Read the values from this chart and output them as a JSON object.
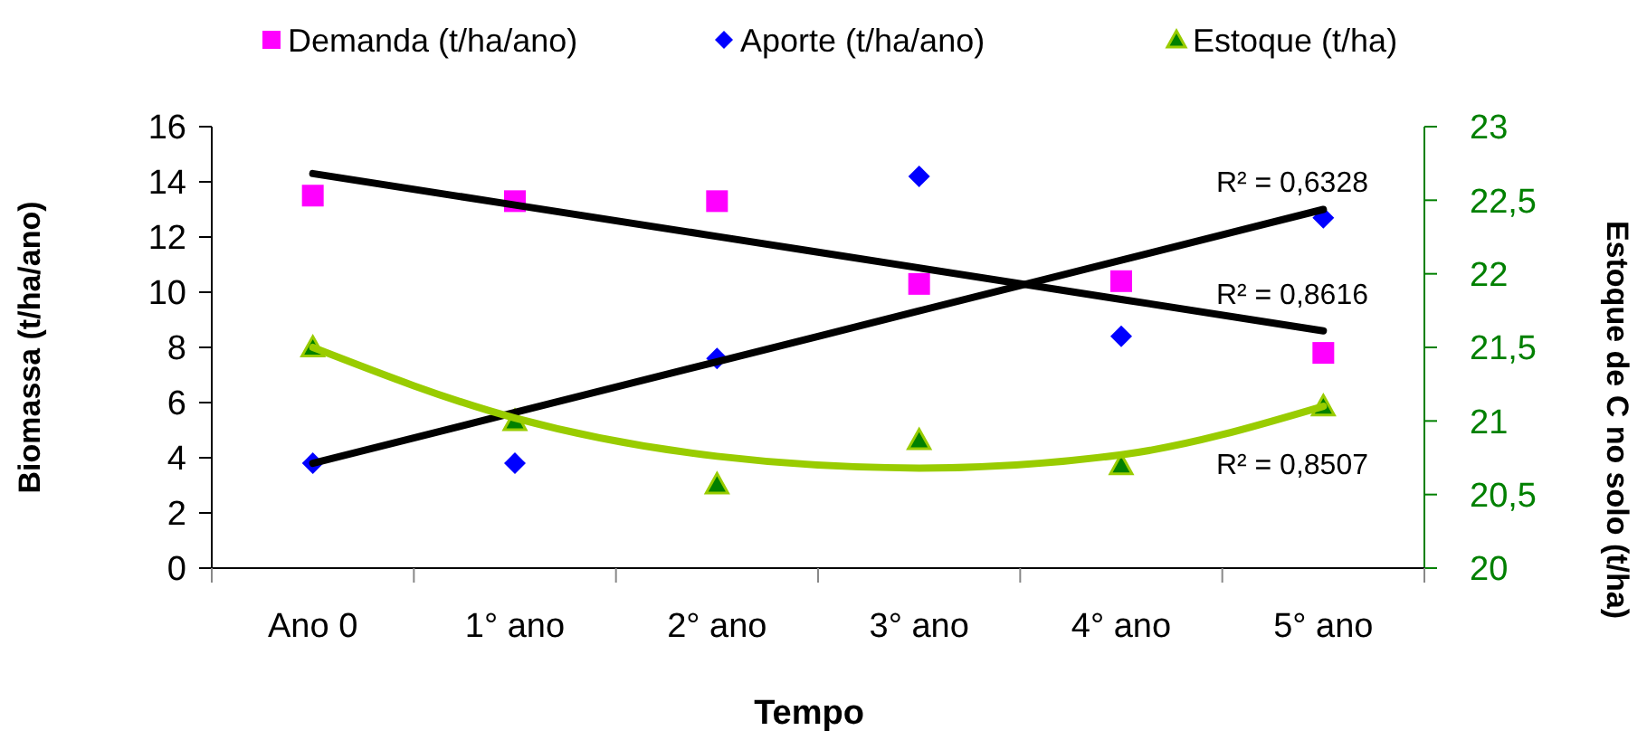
{
  "chart_data": {
    "type": "scatter",
    "xlabel": "Tempo",
    "ylabel": "Biomassa (t/ha/ano)",
    "y2label": "Estoque de C no solo (t/ha)",
    "categories": [
      "Ano 0",
      "1° ano",
      "2° ano",
      "3° ano",
      "4° ano",
      "5° ano"
    ],
    "ylim": [
      0,
      16
    ],
    "yticks": [
      0,
      2,
      4,
      6,
      8,
      10,
      12,
      14,
      16
    ],
    "y2lim": [
      20,
      23
    ],
    "y2ticks": [
      {
        "value": 20,
        "label": "20"
      },
      {
        "value": 20.5,
        "label": "20,5"
      },
      {
        "value": 21,
        "label": "21"
      },
      {
        "value": 21.5,
        "label": "21,5"
      },
      {
        "value": 22,
        "label": "22"
      },
      {
        "value": 22.5,
        "label": "22,5"
      },
      {
        "value": 23,
        "label": "23"
      }
    ],
    "legend": "top",
    "grid": false,
    "series": [
      {
        "name": "Demanda (t/ha/ano)",
        "marker": "square",
        "color": "#ff00ff",
        "values": [
          13.5,
          13.3,
          13.3,
          10.3,
          10.4,
          7.8
        ]
      },
      {
        "name": "Aporte (t/ha/ano)",
        "marker": "diamond",
        "color": "#0000ff",
        "values": [
          3.8,
          3.8,
          7.6,
          14.2,
          8.4,
          12.7
        ]
      },
      {
        "name": "Estoque (t/ha)",
        "marker": "triangle",
        "axis": "y2",
        "color": "#008000",
        "values": [
          21.5,
          21.0,
          20.57,
          20.87,
          20.7,
          21.1
        ]
      },
      {
        "type": "line",
        "marker": "none",
        "color": "#000000",
        "values": [
          14.3,
          13.16,
          12.02,
          10.88,
          9.74,
          8.6
        ]
      },
      {
        "type": "line",
        "marker": "none",
        "color": "#000000",
        "values": [
          3.8,
          5.64,
          7.48,
          9.32,
          11.16,
          13.0
        ]
      },
      {
        "type": "line",
        "marker": "none",
        "axis": "y2",
        "color": "#99cc00",
        "values": [
          21.5,
          21.02,
          20.76,
          20.68,
          20.77,
          21.1
        ]
      }
    ],
    "annotations": [
      "R² = 0,6328",
      "R² = 0,8616",
      "R² = 0,8507"
    ]
  }
}
